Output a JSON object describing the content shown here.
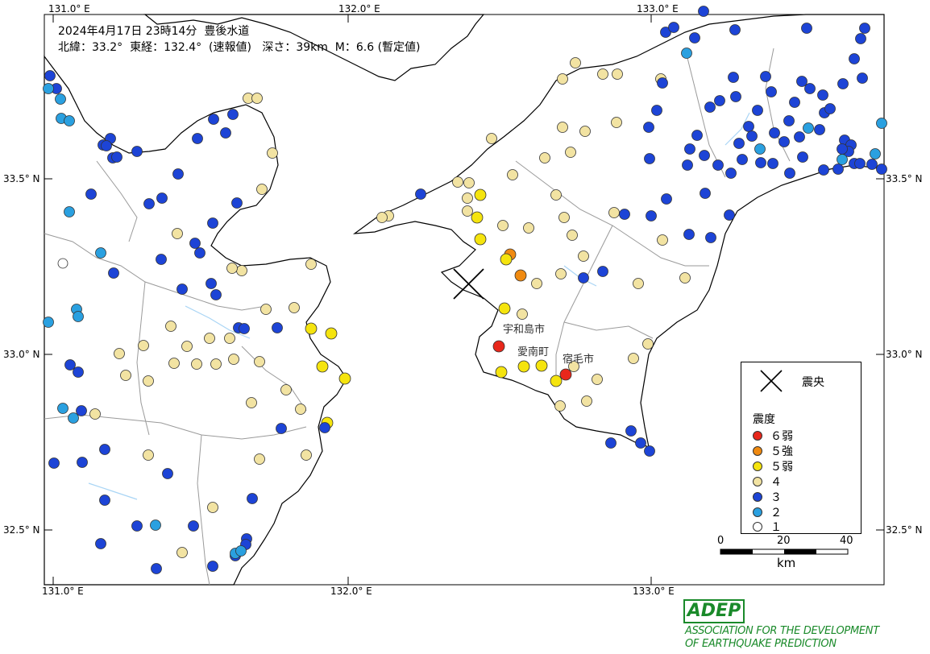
{
  "header": {
    "line1": "2024年4月17日 23時14分  豊後水道",
    "line2": "北緯：33.2°  東経：132.4°  (速報値)   深さ：39km  M：6.6 (暫定値)"
  },
  "axes": {
    "lon_top": [
      "131.0° E",
      "132.0° E",
      "133.0° E"
    ],
    "lon_bottom": [
      "131.0° E",
      "132.0° E",
      "133.0° E"
    ],
    "lat_left": [
      "33.5° N",
      "33.0° N",
      "32.5° N"
    ],
    "lat_right": [
      "33.5° N",
      "33.0° N",
      "32.5° N"
    ]
  },
  "place_labels": [
    "宇和島市",
    "愛南町",
    "宿毛市"
  ],
  "legend": {
    "epicenter_label": "震央",
    "title": "震度",
    "items": [
      {
        "label": "６弱",
        "color": "#e8271b"
      },
      {
        "label": "５強",
        "color": "#f08a10"
      },
      {
        "label": "５弱",
        "color": "#f5e40e"
      },
      {
        "label": "４",
        "color": "#f2e3a2"
      },
      {
        "label": "３",
        "color": "#1d44d6"
      },
      {
        "label": "２",
        "color": "#2aa0e0"
      },
      {
        "label": "１",
        "color": "#ffffff"
      }
    ]
  },
  "scale": {
    "ticks": [
      "0",
      "20",
      "40"
    ],
    "unit": "km"
  },
  "footer": {
    "logo": "ADEP",
    "line1": "ASSOCIATION FOR THE DEVELOPMENT",
    "line2": "OF EARTHQUAKE PREDICTION"
  },
  "colors": {
    "sea": "#ffffff",
    "land": "#ffffff",
    "coast": "#000000",
    "prefecture_border": "#9a9a9a",
    "river": "#a9d5f5"
  }
}
